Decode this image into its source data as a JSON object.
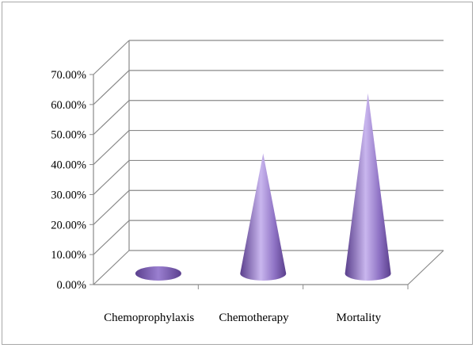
{
  "chart_data": {
    "type": "bar",
    "style": "3d-cone",
    "title": "",
    "xlabel": "",
    "ylabel": "",
    "categories": [
      "Chemoprophylaxis",
      "Chemotherapy",
      "Mortality"
    ],
    "values": [
      0.0,
      40.0,
      60.0
    ],
    "ylim": [
      0,
      70
    ],
    "y_step": 10,
    "y_tick_labels": [
      "0.00%",
      "10.00%",
      "20.00%",
      "30.00%",
      "40.00%",
      "50.00%",
      "60.00%",
      "70.00%"
    ],
    "grid": true,
    "legend": "none",
    "colors": {
      "cone": "#8e72c4",
      "cone_dark": "#5a3f8c",
      "cone_light": "#c9b6ee",
      "grid": "#8a8a8a"
    }
  }
}
